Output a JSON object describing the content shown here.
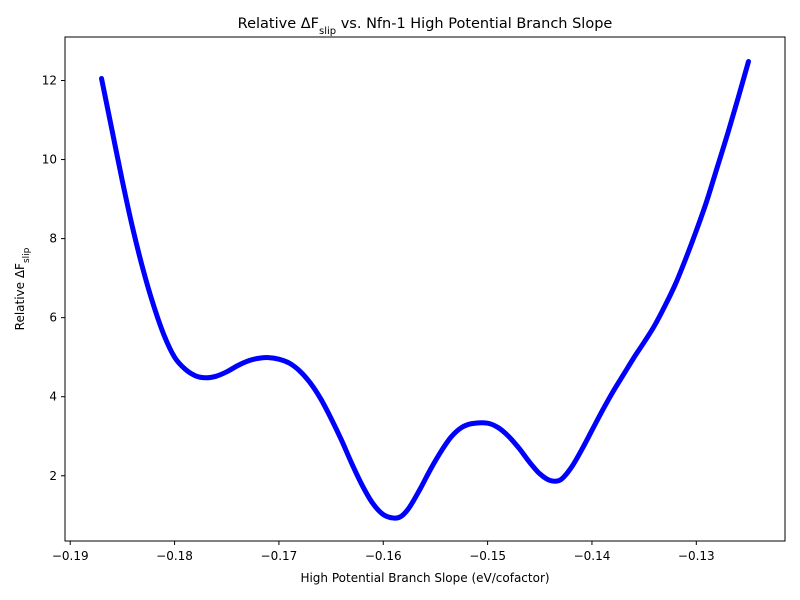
{
  "chart_data": {
    "type": "line",
    "title": {
      "prefix": "Relative ΔF",
      "subscript": "slip",
      "suffix": " vs. Nfn-1 High Potential Branch Slope"
    },
    "xlabel": "High Potential Branch Slope (eV/cofactor)",
    "ylabel": {
      "prefix": "Relative ΔF",
      "subscript": "slip"
    },
    "xlim": [
      -0.1905,
      -0.1215
    ],
    "ylim": [
      0.35,
      13.1
    ],
    "xticks": [
      -0.19,
      -0.18,
      -0.17,
      -0.16,
      -0.15,
      -0.14,
      -0.13
    ],
    "xtick_labels": [
      "−0.19",
      "−0.18",
      "−0.17",
      "−0.16",
      "−0.15",
      "−0.14",
      "−0.13"
    ],
    "yticks": [
      2,
      4,
      6,
      8,
      10,
      12
    ],
    "ytick_labels": [
      "2",
      "4",
      "6",
      "8",
      "10",
      "12"
    ],
    "grid": false,
    "series": [
      {
        "color": "#0000ff",
        "x": [
          -0.187,
          -0.186,
          -0.185,
          -0.184,
          -0.183,
          -0.182,
          -0.181,
          -0.18,
          -0.179,
          -0.178,
          -0.177,
          -0.176,
          -0.175,
          -0.174,
          -0.173,
          -0.172,
          -0.171,
          -0.17,
          -0.169,
          -0.168,
          -0.167,
          -0.166,
          -0.165,
          -0.164,
          -0.163,
          -0.162,
          -0.161,
          -0.16,
          -0.159,
          -0.1583,
          -0.1575,
          -0.1565,
          -0.1555,
          -0.1545,
          -0.1535,
          -0.1525,
          -0.1515,
          -0.15,
          -0.149,
          -0.148,
          -0.147,
          -0.146,
          -0.145,
          -0.144,
          -0.143,
          -0.142,
          -0.141,
          -0.14,
          -0.139,
          -0.138,
          -0.137,
          -0.136,
          -0.135,
          -0.134,
          -0.133,
          -0.132,
          -0.131,
          -0.13,
          -0.129,
          -0.128,
          -0.127,
          -0.126,
          -0.125
        ],
        "y": [
          12.05,
          10.75,
          9.45,
          8.25,
          7.2,
          6.3,
          5.55,
          5.0,
          4.7,
          4.53,
          4.48,
          4.52,
          4.63,
          4.78,
          4.9,
          4.97,
          4.99,
          4.95,
          4.85,
          4.65,
          4.35,
          3.95,
          3.45,
          2.9,
          2.3,
          1.75,
          1.3,
          1.02,
          0.93,
          0.97,
          1.2,
          1.65,
          2.15,
          2.6,
          2.98,
          3.22,
          3.32,
          3.33,
          3.22,
          3.0,
          2.7,
          2.35,
          2.05,
          1.88,
          1.9,
          2.2,
          2.65,
          3.15,
          3.65,
          4.12,
          4.55,
          4.98,
          5.38,
          5.8,
          6.3,
          6.85,
          7.5,
          8.2,
          8.95,
          9.8,
          10.65,
          11.55,
          12.48
        ]
      }
    ]
  }
}
